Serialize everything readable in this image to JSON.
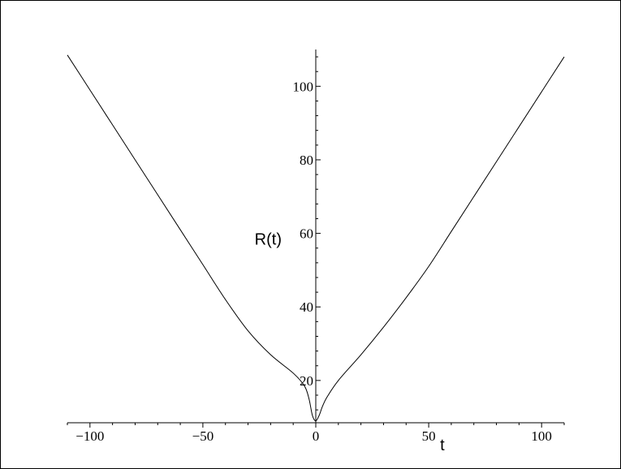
{
  "chart_data": {
    "type": "line",
    "title": "",
    "xlabel": "t",
    "ylabel": "R(t)",
    "xlim": [
      -110,
      110
    ],
    "ylim": [
      8.5,
      110
    ],
    "x_ticks": [
      {
        "value": -100,
        "label": "−100"
      },
      {
        "value": -50,
        "label": "−50"
      },
      {
        "value": 0,
        "label": "0"
      },
      {
        "value": 50,
        "label": "50"
      },
      {
        "value": 100,
        "label": "100"
      }
    ],
    "y_ticks": [
      {
        "value": 20,
        "label": "20"
      },
      {
        "value": 40,
        "label": "40"
      },
      {
        "value": 60,
        "label": "60"
      },
      {
        "value": 80,
        "label": "80"
      },
      {
        "value": 100,
        "label": "100"
      }
    ],
    "grid": false,
    "series": [
      {
        "x": [
          -110,
          -100,
          -90,
          -80,
          -70,
          -60,
          -50,
          -40,
          -30,
          -20,
          -10,
          -5,
          -3,
          -1.5,
          0,
          1.5,
          3,
          5,
          10,
          20,
          30,
          40,
          50,
          60,
          70,
          80,
          90,
          100,
          110
        ],
        "y": [
          108.5,
          99,
          89.5,
          80,
          70.5,
          61,
          51.5,
          42,
          33.5,
          27,
          22,
          18.5,
          15,
          10.5,
          9,
          10.5,
          13,
          15.5,
          20,
          27,
          34.5,
          42.5,
          51,
          60.5,
          70,
          79.5,
          89,
          98.5,
          108
        ]
      }
    ]
  }
}
